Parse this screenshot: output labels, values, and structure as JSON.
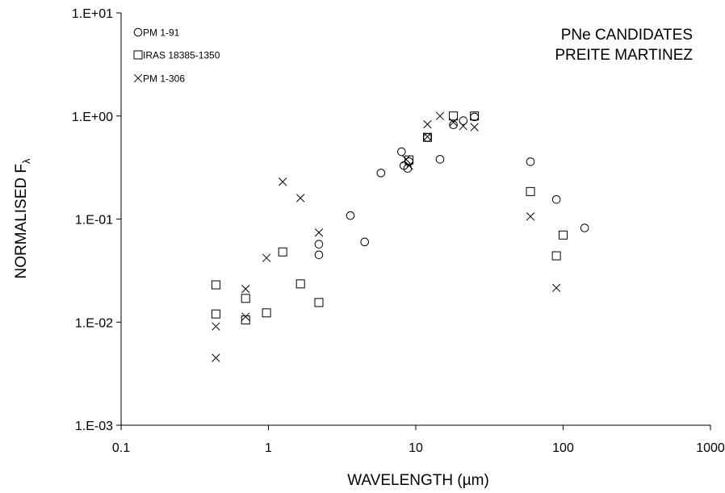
{
  "chart_data": {
    "type": "scatter",
    "x_scale": "log",
    "y_scale": "log",
    "xlabel": "WAVELENGTH (µm)",
    "ylabel_main": "NORMALISED F",
    "ylabel_sub": "λ",
    "xlim": [
      0.1,
      1000
    ],
    "ylim": [
      0.001,
      10
    ],
    "x_ticks": [
      0.1,
      1,
      10,
      100,
      1000
    ],
    "x_tick_labels": [
      "0.1",
      "1",
      "10",
      "100",
      "1000"
    ],
    "y_ticks": [
      0.001,
      0.01,
      0.1,
      1,
      10
    ],
    "y_tick_labels": [
      "1.E-03",
      "1.E-02",
      "1.E-01",
      "1.E+00",
      "1.E+01"
    ],
    "grid": false,
    "legend_position": "top-left",
    "annotation": [
      "PNe CANDIDATES",
      "PREITE MARTINEZ"
    ],
    "series": [
      {
        "name": "PM 1-91",
        "marker": "circle",
        "points": [
          [
            2.2,
            0.057
          ],
          [
            2.2,
            0.045
          ],
          [
            3.6,
            0.108
          ],
          [
            4.5,
            0.06
          ],
          [
            5.8,
            0.28
          ],
          [
            8.0,
            0.45
          ],
          [
            8.3,
            0.33
          ],
          [
            8.8,
            0.31
          ],
          [
            9.0,
            0.36
          ],
          [
            12,
            0.62
          ],
          [
            14.6,
            0.38
          ],
          [
            18,
            0.82
          ],
          [
            21,
            0.9
          ],
          [
            25,
            0.98
          ],
          [
            60,
            0.36
          ],
          [
            90,
            0.155
          ],
          [
            140,
            0.082
          ]
        ]
      },
      {
        "name": "IRAS 18385-1350",
        "marker": "square",
        "points": [
          [
            0.44,
            0.023
          ],
          [
            0.44,
            0.012
          ],
          [
            0.7,
            0.017
          ],
          [
            0.7,
            0.0105
          ],
          [
            0.97,
            0.0123
          ],
          [
            1.25,
            0.048
          ],
          [
            1.65,
            0.0235
          ],
          [
            2.2,
            0.0155
          ],
          [
            9.0,
            0.375
          ],
          [
            12,
            0.62
          ],
          [
            18,
            1.0
          ],
          [
            25,
            1.0
          ],
          [
            60,
            0.185
          ],
          [
            90,
            0.044
          ],
          [
            100,
            0.07
          ]
        ]
      },
      {
        "name": "PM 1-306",
        "marker": "cross",
        "points": [
          [
            0.44,
            0.0091
          ],
          [
            0.44,
            0.0045
          ],
          [
            0.7,
            0.021
          ],
          [
            0.7,
            0.0113
          ],
          [
            0.97,
            0.042
          ],
          [
            1.25,
            0.23
          ],
          [
            1.65,
            0.16
          ],
          [
            2.2,
            0.074
          ],
          [
            8.6,
            0.38
          ],
          [
            9.0,
            0.33
          ],
          [
            12,
            0.63
          ],
          [
            12,
            0.83
          ],
          [
            14.6,
            1.0
          ],
          [
            18,
            0.87
          ],
          [
            21,
            0.8
          ],
          [
            25,
            0.78
          ],
          [
            60,
            0.106
          ],
          [
            90,
            0.0215
          ]
        ]
      }
    ]
  }
}
